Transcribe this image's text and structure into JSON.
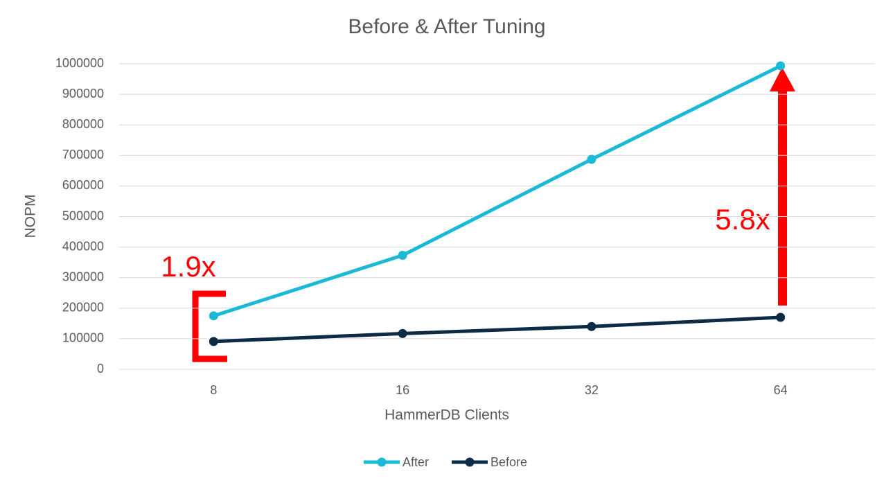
{
  "chart_data": {
    "type": "line",
    "title": "Before & After Tuning",
    "x_label": "HammerDB Clients",
    "y_label": "NOPM",
    "categories": [
      "8",
      "16",
      "32",
      "64"
    ],
    "series": [
      {
        "name": "After",
        "color": "#1cb9d6",
        "values": [
          175000,
          373000,
          687000,
          993000
        ]
      },
      {
        "name": "Before",
        "color": "#0d2b45",
        "values": [
          91000,
          117000,
          140000,
          170000
        ]
      }
    ],
    "ylim": [
      0,
      1000000
    ],
    "yticks": [
      0,
      100000,
      200000,
      300000,
      400000,
      500000,
      600000,
      700000,
      800000,
      900000,
      1000000
    ],
    "grid": true,
    "legend": "bottom",
    "annotations": [
      "1.9x",
      "5.8x"
    ]
  }
}
